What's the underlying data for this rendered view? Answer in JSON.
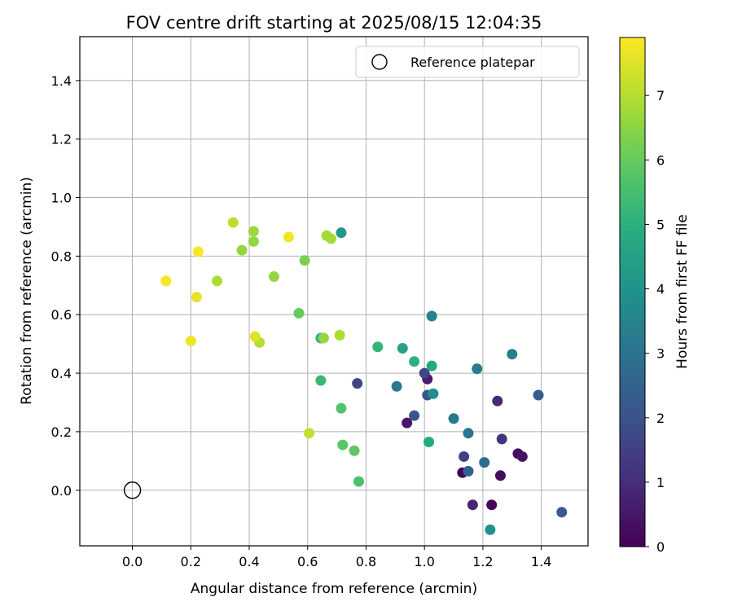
{
  "chart_data": {
    "type": "scatter",
    "title": "FOV centre drift starting at 2025/08/15 12:04:35",
    "xlabel": "Angular distance from reference (arcmin)",
    "ylabel": "Rotation from reference (arcmin)",
    "xlim": [
      -0.18,
      1.56
    ],
    "ylim": [
      -0.19,
      1.55
    ],
    "xticks": [
      "0.0",
      "0.2",
      "0.4",
      "0.6",
      "0.8",
      "1.0",
      "1.2",
      "1.4"
    ],
    "xtick_values": [
      0.0,
      0.2,
      0.4,
      0.6,
      0.8,
      1.0,
      1.2,
      1.4
    ],
    "yticks": [
      "0.0",
      "0.2",
      "0.4",
      "0.6",
      "0.8",
      "1.0",
      "1.2",
      "1.4"
    ],
    "ytick_values": [
      0.0,
      0.2,
      0.4,
      0.6,
      0.8,
      1.0,
      1.2,
      1.4
    ],
    "grid": true,
    "legend": {
      "position": "top-right",
      "entries": [
        {
          "label": "Reference platepar",
          "marker": "open-circle",
          "x": 0.0,
          "y": 0.0
        }
      ]
    },
    "colorbar": {
      "label": "Hours from first FF file",
      "colormap": "viridis",
      "range": [
        0,
        7.9
      ],
      "ticks": [
        "0",
        "1",
        "2",
        "3",
        "4",
        "5",
        "6",
        "7"
      ],
      "tick_values": [
        0,
        1,
        2,
        3,
        4,
        5,
        6,
        7
      ]
    },
    "points": [
      {
        "x": 1.13,
        "y": 0.06,
        "c": 0.1
      },
      {
        "x": 1.23,
        "y": -0.05,
        "c": 0.1
      },
      {
        "x": 1.26,
        "y": 0.05,
        "c": 0.2
      },
      {
        "x": 1.32,
        "y": 0.125,
        "c": 0.3
      },
      {
        "x": 1.335,
        "y": 0.115,
        "c": 0.4
      },
      {
        "x": 0.94,
        "y": 0.23,
        "c": 0.5
      },
      {
        "x": 1.01,
        "y": 0.38,
        "c": 0.6
      },
      {
        "x": 1.165,
        "y": -0.05,
        "c": 0.8
      },
      {
        "x": 1.25,
        "y": 0.305,
        "c": 0.9
      },
      {
        "x": 1.265,
        "y": 0.175,
        "c": 1.2
      },
      {
        "x": 1.135,
        "y": 0.115,
        "c": 1.5
      },
      {
        "x": 0.77,
        "y": 0.365,
        "c": 1.6
      },
      {
        "x": 1.0,
        "y": 0.4,
        "c": 1.7
      },
      {
        "x": 1.01,
        "y": 0.325,
        "c": 2.0
      },
      {
        "x": 0.965,
        "y": 0.255,
        "c": 2.1
      },
      {
        "x": 1.47,
        "y": -0.075,
        "c": 2.2
      },
      {
        "x": 1.39,
        "y": 0.325,
        "c": 2.3
      },
      {
        "x": 1.15,
        "y": 0.065,
        "c": 2.5
      },
      {
        "x": 1.205,
        "y": 0.095,
        "c": 2.8
      },
      {
        "x": 1.15,
        "y": 0.195,
        "c": 3.0
      },
      {
        "x": 1.1,
        "y": 0.245,
        "c": 3.2
      },
      {
        "x": 0.905,
        "y": 0.355,
        "c": 3.2
      },
      {
        "x": 1.18,
        "y": 0.415,
        "c": 3.3
      },
      {
        "x": 1.3,
        "y": 0.465,
        "c": 3.4
      },
      {
        "x": 1.025,
        "y": 0.595,
        "c": 3.5
      },
      {
        "x": 1.03,
        "y": 0.33,
        "c": 3.9
      },
      {
        "x": 1.225,
        "y": -0.135,
        "c": 4.0
      },
      {
        "x": 0.715,
        "y": 0.88,
        "c": 4.2
      },
      {
        "x": 0.925,
        "y": 0.485,
        "c": 4.5
      },
      {
        "x": 1.025,
        "y": 0.425,
        "c": 4.7
      },
      {
        "x": 1.015,
        "y": 0.165,
        "c": 4.8
      },
      {
        "x": 0.965,
        "y": 0.44,
        "c": 5.0
      },
      {
        "x": 0.84,
        "y": 0.49,
        "c": 5.2
      },
      {
        "x": 0.645,
        "y": 0.52,
        "c": 5.2
      },
      {
        "x": 0.645,
        "y": 0.375,
        "c": 5.3
      },
      {
        "x": 0.775,
        "y": 0.03,
        "c": 5.6
      },
      {
        "x": 0.715,
        "y": 0.28,
        "c": 5.7
      },
      {
        "x": 0.72,
        "y": 0.155,
        "c": 5.8
      },
      {
        "x": 0.76,
        "y": 0.135,
        "c": 5.9
      },
      {
        "x": 0.57,
        "y": 0.605,
        "c": 6.0
      },
      {
        "x": 0.59,
        "y": 0.785,
        "c": 6.3
      },
      {
        "x": 0.485,
        "y": 0.73,
        "c": 6.6
      },
      {
        "x": 0.415,
        "y": 0.85,
        "c": 6.6
      },
      {
        "x": 0.375,
        "y": 0.82,
        "c": 6.6
      },
      {
        "x": 0.655,
        "y": 0.52,
        "c": 6.6
      },
      {
        "x": 0.415,
        "y": 0.885,
        "c": 6.7
      },
      {
        "x": 0.665,
        "y": 0.87,
        "c": 6.8
      },
      {
        "x": 0.68,
        "y": 0.86,
        "c": 6.8
      },
      {
        "x": 0.29,
        "y": 0.715,
        "c": 6.9
      },
      {
        "x": 0.71,
        "y": 0.53,
        "c": 6.9
      },
      {
        "x": 0.435,
        "y": 0.505,
        "c": 7.0
      },
      {
        "x": 0.345,
        "y": 0.915,
        "c": 7.1
      },
      {
        "x": 0.605,
        "y": 0.195,
        "c": 7.2
      },
      {
        "x": 0.42,
        "y": 0.525,
        "c": 7.5
      },
      {
        "x": 0.22,
        "y": 0.66,
        "c": 7.6
      },
      {
        "x": 0.2,
        "y": 0.51,
        "c": 7.7
      },
      {
        "x": 0.535,
        "y": 0.865,
        "c": 7.7
      },
      {
        "x": 0.115,
        "y": 0.715,
        "c": 7.8
      },
      {
        "x": 0.225,
        "y": 0.815,
        "c": 7.8
      }
    ]
  }
}
